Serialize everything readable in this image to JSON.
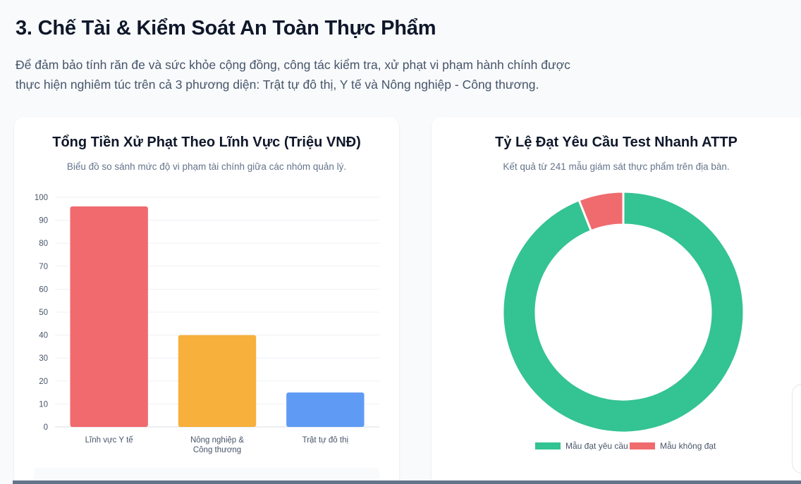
{
  "section": {
    "title": "3. Chế Tài & Kiểm Soát An Toàn Thực Phẩm",
    "description_line1": "Để đảm bảo tính răn đe và sức khỏe cộng đồng, công tác kiểm tra, xử phạt vi phạm hành chính được",
    "description_line2": "thực hiện nghiêm túc trên cả 3 phương diện: Trật tự đô thị, Y tế và Nông nghiệp - Công thương."
  },
  "chart_data": [
    {
      "type": "bar",
      "title": "Tổng Tiền Xử Phạt Theo Lĩnh Vực (Triệu VNĐ)",
      "subtitle": "Biểu đồ so sánh mức độ vi phạm tài chính giữa các nhóm quản lý.",
      "categories": [
        [
          "Lĩnh vực Y tế"
        ],
        [
          "Nông nghiệp &",
          "Công thương"
        ],
        [
          "Trật tự đô thị"
        ]
      ],
      "values": [
        96,
        40,
        15
      ],
      "colors": [
        "#f06a6e",
        "#f7b03b",
        "#5f9bf4"
      ],
      "ylim": [
        0,
        100
      ],
      "yticks": [
        0,
        10,
        20,
        30,
        40,
        50,
        60,
        70,
        80,
        90,
        100
      ],
      "grid": true,
      "xlabel": "",
      "ylabel": ""
    },
    {
      "type": "pie",
      "variant": "doughnut",
      "title": "Tỷ Lệ Đạt Yêu Cầu Test Nhanh ATTP",
      "subtitle": "Kết quả từ 241 mẫu giám sát thực phẩm trên địa bàn.",
      "labels": [
        "Mẫu đạt yêu cầu",
        "Mẫu không đạt"
      ],
      "values": [
        94,
        6
      ],
      "colors": [
        "#34c392",
        "#ef6b6e"
      ],
      "legend": "bottom"
    }
  ]
}
